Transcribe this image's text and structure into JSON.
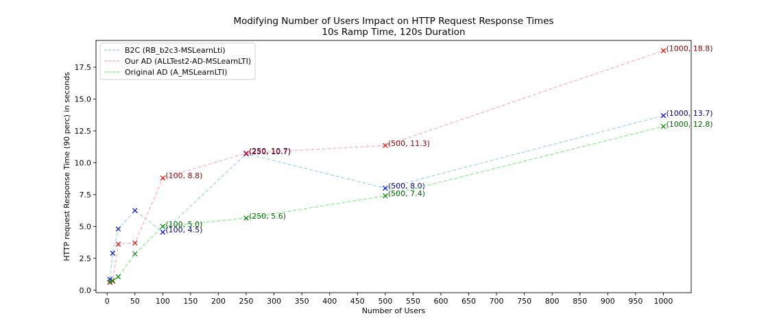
{
  "chart_data": {
    "type": "line",
    "title": "Modifying Number of Users Impact on HTTP Request Response Times",
    "subtitle": "10s Ramp Time, 120s Duration",
    "xlabel": "Number of Users",
    "ylabel": "HTTP request Response Time (90 perc) in seconds",
    "xlim": [
      -20,
      1050
    ],
    "ylim": [
      -0.2,
      19.6
    ],
    "xticks": [
      0,
      50,
      100,
      150,
      200,
      250,
      300,
      350,
      400,
      450,
      500,
      550,
      600,
      650,
      700,
      750,
      800,
      850,
      900,
      950,
      1000
    ],
    "yticks": [
      0.0,
      2.5,
      5.0,
      7.5,
      10.0,
      12.5,
      15.0,
      17.5
    ],
    "grid": false,
    "legend_position": "top-left",
    "marker": "x",
    "series": [
      {
        "name": "B2C (RB_b2c3-MSLearnLti)",
        "line_color": "#a6d8ee",
        "marker_color": "#0000ff",
        "annotation_color": "#00008b",
        "x": [
          5,
          10,
          20,
          50,
          100,
          250,
          500,
          1000
        ],
        "y": [
          0.85,
          2.9,
          4.8,
          6.25,
          4.55,
          10.7,
          8.0,
          13.7
        ],
        "annotations": [
          {
            "x": 100,
            "y": 4.55,
            "text": "(100, 4.5)"
          },
          {
            "x": 250,
            "y": 10.7,
            "text": "(250, 10.7)"
          },
          {
            "x": 500,
            "y": 8.0,
            "text": "(500, 8.0)"
          },
          {
            "x": 1000,
            "y": 13.7,
            "text": "(1000, 13.7)"
          }
        ]
      },
      {
        "name": "Our AD (ALLTest2-AD-MSLearnLTI)",
        "line_color": "#ffb6c1",
        "marker_color": "#ff0000",
        "annotation_color": "#8b0000",
        "x": [
          5,
          10,
          20,
          50,
          100,
          250,
          500,
          1000
        ],
        "y": [
          0.6,
          0.7,
          3.6,
          3.7,
          8.8,
          10.75,
          11.35,
          18.8
        ],
        "annotations": [
          {
            "x": 100,
            "y": 8.8,
            "text": "(100, 8.8)"
          },
          {
            "x": 250,
            "y": 10.75,
            "text": "(250, 10.7)"
          },
          {
            "x": 500,
            "y": 11.35,
            "text": "(500, 11.3)"
          },
          {
            "x": 1000,
            "y": 18.8,
            "text": "(1000, 18.8)"
          }
        ]
      },
      {
        "name": "Original AD (A_MSLearnLTI)",
        "line_color": "#90ee90",
        "marker_color": "#008000",
        "annotation_color": "#006400",
        "x": [
          5,
          10,
          20,
          50,
          100,
          250,
          500,
          1000
        ],
        "y": [
          0.65,
          0.75,
          1.05,
          2.85,
          5.0,
          5.65,
          7.4,
          12.85
        ],
        "annotations": [
          {
            "x": 100,
            "y": 5.0,
            "text": "(100, 5.0)"
          },
          {
            "x": 250,
            "y": 5.65,
            "text": "(250, 5.6)"
          },
          {
            "x": 500,
            "y": 7.4,
            "text": "(500, 7.4)"
          },
          {
            "x": 1000,
            "y": 12.85,
            "text": "(1000, 12.8)"
          }
        ]
      }
    ]
  }
}
